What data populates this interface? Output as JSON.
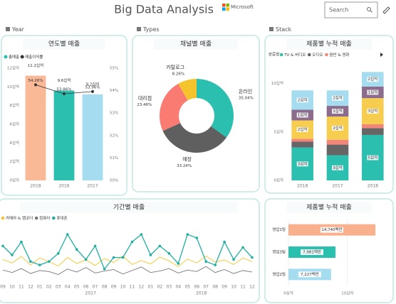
{
  "header": {
    "title": "Big Data Analysis",
    "logo": "Microsoft",
    "search": "Search"
  },
  "sections": [
    "Year",
    "Types",
    "Stack"
  ],
  "chart_data": [
    {
      "type": "bar_line",
      "title": "연도별 매출",
      "categories": [
        "2018",
        "2016",
        "2017"
      ],
      "series": [
        {
          "name": "총매출",
          "color": "#2bbfb0",
          "colors": [
            "#f9b896",
            "#2bbfb0",
            "#a6dcef"
          ],
          "values": [
            11.2,
            9.6,
            9.2
          ],
          "value_labels": [
            "11.2십억",
            "9.6십억",
            "9.2십억"
          ]
        },
        {
          "name": "매출이익률",
          "color": "#333333",
          "axis": "y2",
          "values": [
            54.26,
            53.86,
            53.96
          ],
          "value_labels": [
            "54.26%",
            "53.86%",
            "53.96%"
          ]
        }
      ],
      "ylim": [
        0,
        12
      ],
      "yticks": [
        {
          "value": 0,
          "label": "0십억"
        },
        {
          "value": 2,
          "label": "2십억"
        },
        {
          "value": 4,
          "label": "4십억"
        },
        {
          "value": 6,
          "label": "6십억"
        },
        {
          "value": 8,
          "label": "8십억"
        },
        {
          "value": 10,
          "label": "10십억"
        },
        {
          "value": 12,
          "label": "12십억"
        }
      ],
      "y2lim": [
        50,
        55
      ],
      "y2ticks": [
        {
          "value": 50,
          "label": "50%"
        },
        {
          "value": 51,
          "label": "51%"
        },
        {
          "value": 52,
          "label": "52%"
        },
        {
          "value": 53,
          "label": "53%"
        },
        {
          "value": 54,
          "label": "54%"
        },
        {
          "value": 55,
          "label": "55%"
        }
      ]
    },
    {
      "type": "donut",
      "title": "채널별 매출",
      "categories": [
        "온라인",
        "매장",
        "대리점",
        "카탈로그"
      ],
      "values": [
        35.04,
        33.24,
        23.46,
        8.26
      ],
      "value_labels": [
        "35.04%",
        "33.24%",
        "23.46%",
        "8.26%"
      ],
      "colors": [
        "#2bbfb0",
        "#5f5f5f",
        "#f97b72",
        "#f5c42c"
      ]
    },
    {
      "type": "stacked_bar",
      "title": "제품별 누적 매출",
      "legend_title": "분류명",
      "categories": [
        "2018",
        "2017",
        "2018"
      ],
      "series": [
        {
          "name": "TV & 비디오",
          "color": "#2bbfb0",
          "values": [
            3.4,
            2.6,
            4.7
          ],
          "value_labels": [
            "3십억",
            "3십억",
            "5십억"
          ]
        },
        {
          "name": "오디오",
          "color": "#666666",
          "values": [
            0.6,
            1.1,
            0.7
          ]
        },
        {
          "name": "음반 & 영화",
          "color": "#f4857a",
          "values": [
            0.3,
            0.5,
            0.4
          ]
        },
        {
          "color": "#f6cd4f",
          "values": [
            1.9,
            2.4,
            2.7
          ],
          "value_labels": [
            "2십억",
            "2십억",
            "3십억"
          ]
        },
        {
          "color": "#8b6c8d",
          "values": [
            1.1,
            1.1,
            1.2
          ],
          "value_labels": [
            "1십억",
            "1십억",
            "1십억"
          ]
        },
        {
          "color": "#a6dcef",
          "values": [
            2.0,
            1.6,
            1.5
          ],
          "value_labels": [
            "2십억",
            "2십억",
            "2십억"
          ]
        }
      ],
      "ylim": [
        0,
        11.3
      ],
      "yticks": [
        {
          "value": 0,
          "label": "0십억"
        },
        {
          "value": 5,
          "label": "5십억"
        },
        {
          "value": 10,
          "label": "10십억"
        }
      ]
    },
    {
      "type": "line",
      "title": "기간별 매출",
      "categories": [
        "09",
        "10",
        "11",
        "12",
        "01",
        "02",
        "03",
        "04",
        "05",
        "06",
        "07",
        "08",
        "09",
        "10",
        "11",
        "12",
        "01",
        "02",
        "03",
        "04",
        "05",
        "06",
        "07",
        "08",
        "09",
        "10",
        "11",
        "12"
      ],
      "year_labels": [
        "2017",
        "2018"
      ],
      "series": [
        {
          "name": "카메라 & 캠코더",
          "color": "#f5c42c",
          "values": [
            4.2,
            3.5,
            4.8,
            3.1,
            4.5,
            3.8,
            2.9,
            4.6,
            3.4,
            4.1,
            3.0,
            4.4,
            3.6,
            4.9,
            3.2,
            4.0,
            3.3,
            4.7,
            3.9,
            2.8,
            4.3,
            3.5,
            4.9,
            3.7,
            4.1,
            3.2,
            4.5,
            3.8
          ]
        },
        {
          "name": "컴퓨터",
          "color": "#777777",
          "values": [
            2.1,
            1.6,
            2.4,
            1.4,
            2.0,
            1.8,
            1.2,
            2.3,
            1.7,
            2.6,
            1.5,
            1.9,
            2.2,
            1.3,
            2.0,
            2.7,
            1.6,
            1.9,
            2.4,
            1.5,
            2.1,
            1.8,
            2.8,
            1.6,
            2.2,
            1.4,
            2.0,
            1.7
          ]
        },
        {
          "name": "휴대폰",
          "color": "#1fae9f",
          "values": [
            6.9,
            5.1,
            7.7,
            3.8,
            3.1,
            3.8,
            5.4,
            9.2,
            6.2,
            4.2,
            6.9,
            2.3,
            4.6,
            4.6,
            7.7,
            9.2,
            5.1,
            6.9,
            5.4,
            3.4,
            9.2,
            8.5,
            3.8,
            3.1,
            7.7,
            4.2,
            6.6,
            4.6
          ]
        }
      ]
    },
    {
      "type": "hbar",
      "title": "제품별 누적 매출",
      "categories": [
        "영업1팀",
        "영업3팀",
        "영업2팀"
      ],
      "values": [
        14.74,
        7.981,
        7.227
      ],
      "value_labels": [
        "14,740백만",
        "7,981백만",
        "7,227백만"
      ],
      "colors": [
        "#f9b08c",
        "#2bbfb0",
        "#a6dcef"
      ],
      "xlim": [
        0,
        16.3
      ],
      "xticks": [
        {
          "value": 0,
          "label": "0십억"
        },
        {
          "value": 10,
          "label": "10십억"
        }
      ]
    }
  ]
}
